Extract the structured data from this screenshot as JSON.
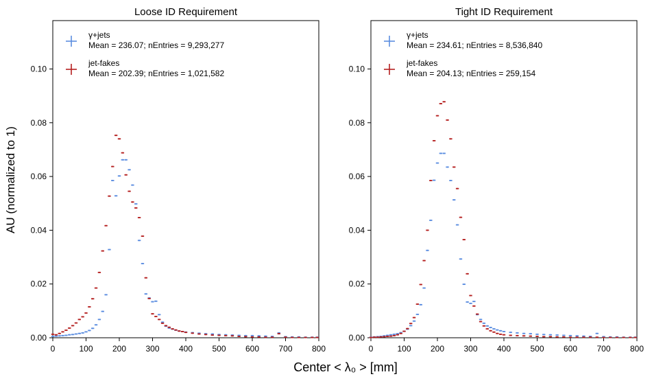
{
  "figure": {
    "ylabel": "AU (normalized to 1)",
    "xlabel": "Center  < λ₀ >  [mm]"
  },
  "chart_data": [
    {
      "type": "scatter",
      "title": "Loose ID Requirement",
      "xlim": [
        0,
        800
      ],
      "ylim": [
        0,
        0.118
      ],
      "xticks": [
        "0",
        "100",
        "200",
        "300",
        "400",
        "500",
        "600",
        "700",
        "800"
      ],
      "yticks": [
        "0.00",
        "0.02",
        "0.04",
        "0.06",
        "0.08",
        "0.10"
      ],
      "legend": "top-left",
      "series": [
        {
          "name": "γ+jets",
          "legend_stats": "Mean = 236.07; nEntries = 9,293,277",
          "color": "#5b8de0",
          "x": [
            0,
            10,
            20,
            30,
            40,
            50,
            60,
            70,
            80,
            90,
            100,
            110,
            120,
            130,
            140,
            150,
            160,
            170,
            180,
            190,
            200,
            210,
            220,
            230,
            240,
            250,
            260,
            270,
            280,
            290,
            300,
            310,
            320,
            330,
            340,
            350,
            360,
            370,
            380,
            390,
            400,
            420,
            440,
            460,
            480,
            500,
            520,
            540,
            560,
            580,
            600,
            620,
            640,
            660,
            680,
            700,
            720,
            740,
            760,
            780,
            795
          ],
          "y": [
            0.0005,
            0.0006,
            0.0007,
            0.0008,
            0.0009,
            0.0011,
            0.0012,
            0.0014,
            0.0016,
            0.0018,
            0.0022,
            0.0027,
            0.0035,
            0.0048,
            0.0068,
            0.0098,
            0.016,
            0.0328,
            0.0585,
            0.0528,
            0.0602,
            0.0662,
            0.0662,
            0.0625,
            0.0568,
            0.0498,
            0.0362,
            0.0276,
            0.0163,
            0.0148,
            0.0134,
            0.0136,
            0.0086,
            0.0058,
            0.0043,
            0.0036,
            0.0032,
            0.0028,
            0.0025,
            0.0023,
            0.0021,
            0.0019,
            0.0017,
            0.0015,
            0.0014,
            0.0012,
            0.0011,
            0.001,
            0.0009,
            0.0008,
            0.0008,
            0.0007,
            0.0006,
            0.0005,
            0.0018,
            0.0004,
            0.0003,
            0.0003,
            0.0002,
            0.0002,
            0.0002
          ]
        },
        {
          "name": "jet-fakes",
          "legend_stats": "Mean = 202.39; nEntries =  1,021,582",
          "color": "#b52020",
          "x": [
            0,
            10,
            20,
            30,
            40,
            50,
            60,
            70,
            80,
            90,
            100,
            110,
            120,
            130,
            140,
            150,
            160,
            170,
            180,
            190,
            200,
            210,
            220,
            230,
            240,
            250,
            260,
            270,
            280,
            290,
            300,
            310,
            320,
            330,
            340,
            350,
            360,
            370,
            380,
            390,
            400,
            420,
            440,
            460,
            480,
            500,
            520,
            540,
            560,
            580,
            600,
            620,
            640,
            660,
            680,
            700,
            720,
            740,
            760,
            780,
            795
          ],
          "y": [
            0.0013,
            0.0011,
            0.0016,
            0.0022,
            0.0028,
            0.0036,
            0.0045,
            0.0055,
            0.0068,
            0.0078,
            0.0092,
            0.0115,
            0.0145,
            0.0185,
            0.0243,
            0.0323,
            0.0417,
            0.0527,
            0.0637,
            0.0753,
            0.074,
            0.0688,
            0.0606,
            0.0545,
            0.0505,
            0.0483,
            0.0447,
            0.0378,
            0.0223,
            0.0146,
            0.0089,
            0.0079,
            0.0068,
            0.0054,
            0.0045,
            0.0039,
            0.0033,
            0.0029,
            0.0025,
            0.0023,
            0.002,
            0.0017,
            0.0014,
            0.0012,
            0.001,
            0.0009,
            0.0008,
            0.0007,
            0.0005,
            0.0004,
            0.0003,
            0.0003,
            0.0002,
            0.0002,
            0.0015,
            0.0002,
            0.0001,
            0.0001,
            0.0001,
            0.0001,
            0.0001
          ]
        }
      ]
    },
    {
      "type": "scatter",
      "title": "Tight ID Requirement",
      "xlim": [
        0,
        800
      ],
      "ylim": [
        0,
        0.118
      ],
      "xticks": [
        "0",
        "100",
        "200",
        "300",
        "400",
        "500",
        "600",
        "700",
        "800"
      ],
      "yticks": [
        "0.00",
        "0.02",
        "0.04",
        "0.06",
        "0.08",
        "0.10"
      ],
      "legend": "top-left",
      "series": [
        {
          "name": "γ+jets",
          "legend_stats": "Mean = 234.61; nEntries = 8,536,840",
          "color": "#5b8de0",
          "x": [
            0,
            10,
            20,
            30,
            40,
            50,
            60,
            70,
            80,
            90,
            100,
            110,
            120,
            130,
            140,
            150,
            160,
            170,
            180,
            190,
            200,
            210,
            220,
            230,
            240,
            250,
            260,
            270,
            280,
            290,
            300,
            310,
            320,
            330,
            340,
            350,
            360,
            370,
            380,
            390,
            400,
            420,
            440,
            460,
            480,
            500,
            520,
            540,
            560,
            580,
            600,
            620,
            640,
            660,
            680,
            700,
            720,
            740,
            760,
            780,
            795
          ],
          "y": [
            0.0002,
            0.0003,
            0.0004,
            0.0005,
            0.0007,
            0.0009,
            0.0011,
            0.0013,
            0.0015,
            0.0019,
            0.0024,
            0.0032,
            0.0045,
            0.0062,
            0.0087,
            0.0123,
            0.0185,
            0.0325,
            0.0437,
            0.0586,
            0.065,
            0.0686,
            0.0686,
            0.0635,
            0.0585,
            0.0513,
            0.042,
            0.0293,
            0.0199,
            0.0133,
            0.0128,
            0.0135,
            0.0086,
            0.0068,
            0.0054,
            0.0044,
            0.0038,
            0.0033,
            0.0029,
            0.0026,
            0.0023,
            0.002,
            0.0018,
            0.0016,
            0.0015,
            0.0013,
            0.0012,
            0.0011,
            0.001,
            0.0009,
            0.0008,
            0.0007,
            0.0006,
            0.0005,
            0.0016,
            0.0004,
            0.0003,
            0.0003,
            0.0002,
            0.0002,
            0.0002
          ]
        },
        {
          "name": "jet-fakes",
          "legend_stats": "Mean = 204.13; nEntries =  259,154",
          "color": "#b52020",
          "x": [
            0,
            10,
            20,
            30,
            40,
            50,
            60,
            70,
            80,
            90,
            100,
            110,
            120,
            130,
            140,
            150,
            160,
            170,
            180,
            190,
            200,
            210,
            220,
            230,
            240,
            250,
            260,
            270,
            280,
            290,
            300,
            310,
            320,
            330,
            340,
            350,
            360,
            370,
            380,
            390,
            400,
            420,
            440,
            460,
            480,
            500,
            520,
            540,
            560,
            580,
            600,
            620,
            640,
            660,
            680,
            700,
            720,
            740,
            760,
            780,
            795
          ],
          "y": [
            0.0001,
            0.0002,
            0.0002,
            0.0003,
            0.0004,
            0.0005,
            0.0006,
            0.0008,
            0.0011,
            0.0016,
            0.0024,
            0.0034,
            0.0053,
            0.0075,
            0.0125,
            0.0198,
            0.0287,
            0.04,
            0.0585,
            0.0733,
            0.0826,
            0.0871,
            0.0878,
            0.081,
            0.074,
            0.0635,
            0.0555,
            0.0448,
            0.0365,
            0.0238,
            0.0157,
            0.0118,
            0.0088,
            0.006,
            0.0044,
            0.0033,
            0.0026,
            0.0021,
            0.0016,
            0.0013,
            0.0011,
            0.0009,
            0.0008,
            0.0007,
            0.0006,
            0.0005,
            0.0004,
            0.0004,
            0.0003,
            0.0003,
            0.0002,
            0.0002,
            0.0002,
            0.0002,
            0.0002,
            0.0001,
            0.0001,
            0.0001,
            0.0001,
            0.0001,
            0.0001
          ]
        }
      ]
    }
  ]
}
